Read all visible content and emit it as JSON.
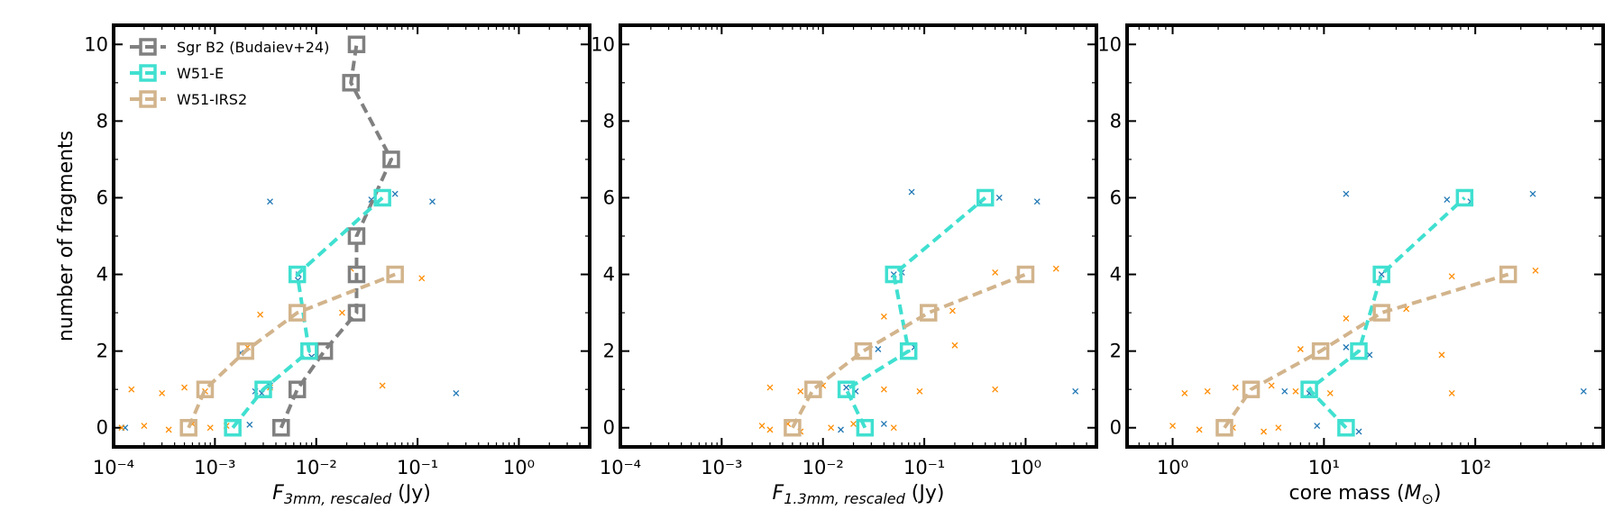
{
  "colors": {
    "sgrb2": "#808080",
    "w51e": "#40e0d0",
    "w51irs2": "#d2b48c",
    "w51e_cores": "#1f77b4",
    "w51irs2_cores": "#ff8c00"
  },
  "chart_data": [
    {
      "type": "line",
      "xscale": "log",
      "xlim": [
        0.0001,
        5
      ],
      "ylim": [
        -0.5,
        10.5
      ],
      "xlabel_main": "F",
      "xlabel_sub": "3mm, rescaled",
      "xlabel_unit": " (Jy)",
      "ylabel": "number of fragments",
      "x_tick_labels": [
        "10⁻⁴",
        "10⁻³",
        "10⁻²",
        "10⁻¹",
        "10⁰"
      ],
      "y_tick_labels": [
        "0",
        "2",
        "4",
        "6",
        "8",
        "10"
      ],
      "legend": {
        "position": "upper-left",
        "entries": [
          "Sgr B2 (Budaiev+24)",
          "W51-E",
          "W51-IRS2"
        ]
      },
      "series": [
        {
          "name": "Sgr B2 (Budaiev+24)",
          "x": [
            0.0045,
            0.0065,
            0.012,
            0.025,
            0.025,
            0.025,
            0.055,
            0.022,
            0.025
          ],
          "y": [
            0,
            1,
            2,
            3,
            4,
            5,
            7,
            9,
            10
          ]
        },
        {
          "name": "W51-E",
          "x": [
            0.0015,
            0.003,
            0.0085,
            0.0065,
            0.045
          ],
          "y": [
            0,
            1,
            2,
            4,
            6
          ]
        },
        {
          "name": "W51-IRS2",
          "x": [
            0.00055,
            0.0008,
            0.002,
            0.0065,
            0.06
          ],
          "y": [
            0,
            1,
            2,
            3,
            4
          ]
        }
      ],
      "cores_w51e": [
        {
          "x": 0.00013,
          "y": 0
        },
        {
          "x": 0.0022,
          "y": 0.08
        },
        {
          "x": 0.0025,
          "y": 0.95
        },
        {
          "x": 0.0035,
          "y": 1.1
        },
        {
          "x": 0.0029,
          "y": 0.9
        },
        {
          "x": 0.0018,
          "y": 1.95
        },
        {
          "x": 0.009,
          "y": 1.85
        },
        {
          "x": 0.0066,
          "y": 3.85
        },
        {
          "x": 0.0067,
          "y": 4.0
        },
        {
          "x": 0.0035,
          "y": 5.9
        },
        {
          "x": 0.035,
          "y": 5.95
        },
        {
          "x": 0.06,
          "y": 6.1
        },
        {
          "x": 0.14,
          "y": 5.9
        },
        {
          "x": 0.24,
          "y": 0.9
        }
      ],
      "cores_w51irs2": [
        {
          "x": 0.00012,
          "y": 0.0
        },
        {
          "x": 0.0002,
          "y": 0.05
        },
        {
          "x": 0.00035,
          "y": -0.05
        },
        {
          "x": 0.0006,
          "y": 0.1
        },
        {
          "x": 0.0009,
          "y": 0.0
        },
        {
          "x": 0.0013,
          "y": 0.05
        },
        {
          "x": 0.00015,
          "y": 1.0
        },
        {
          "x": 0.0003,
          "y": 0.9
        },
        {
          "x": 0.0005,
          "y": 1.05
        },
        {
          "x": 0.0008,
          "y": 0.95
        },
        {
          "x": 0.0035,
          "y": 1.05
        },
        {
          "x": 0.0021,
          "y": 2.1
        },
        {
          "x": 0.0028,
          "y": 2.95
        },
        {
          "x": 0.018,
          "y": 3.0
        },
        {
          "x": 0.022,
          "y": 4.15
        },
        {
          "x": 0.045,
          "y": 1.1
        },
        {
          "x": 0.11,
          "y": 3.9
        }
      ]
    },
    {
      "type": "line",
      "xscale": "log",
      "xlim": [
        0.0001,
        5
      ],
      "ylim": [
        -0.5,
        10.5
      ],
      "xlabel_main": "F",
      "xlabel_sub": "1.3mm, rescaled",
      "xlabel_unit": " (Jy)",
      "x_tick_labels": [
        "10⁻⁴",
        "10⁻³",
        "10⁻²",
        "10⁻¹",
        "10⁰"
      ],
      "y_tick_labels": [
        "0",
        "2",
        "4",
        "6",
        "8",
        "10"
      ],
      "series": [
        {
          "name": "W51-E",
          "x": [
            0.026,
            0.017,
            0.07,
            0.05,
            0.4
          ],
          "y": [
            0,
            1,
            2,
            4,
            6
          ]
        },
        {
          "name": "W51-IRS2",
          "x": [
            0.005,
            0.008,
            0.025,
            0.11,
            1.0
          ],
          "y": [
            0,
            1,
            2,
            3,
            4
          ]
        }
      ],
      "cores_w51e": [
        {
          "x": 0.015,
          "y": -0.05
        },
        {
          "x": 0.04,
          "y": 0.1
        },
        {
          "x": 0.017,
          "y": 1.05
        },
        {
          "x": 0.021,
          "y": 0.95
        },
        {
          "x": 0.035,
          "y": 2.05
        },
        {
          "x": 0.08,
          "y": 2.1
        },
        {
          "x": 0.05,
          "y": 4.0
        },
        {
          "x": 0.06,
          "y": 4.05
        },
        {
          "x": 0.075,
          "y": 6.15
        },
        {
          "x": 0.35,
          "y": 5.9
        },
        {
          "x": 0.55,
          "y": 6.0
        },
        {
          "x": 1.3,
          "y": 5.9
        },
        {
          "x": 3.1,
          "y": 0.95
        }
      ],
      "cores_w51irs2": [
        {
          "x": 0.0025,
          "y": 0.05
        },
        {
          "x": 0.003,
          "y": -0.05
        },
        {
          "x": 0.0045,
          "y": 0.1
        },
        {
          "x": 0.006,
          "y": -0.1
        },
        {
          "x": 0.012,
          "y": 0.0
        },
        {
          "x": 0.02,
          "y": 0.1
        },
        {
          "x": 0.05,
          "y": 0.0
        },
        {
          "x": 0.003,
          "y": 1.05
        },
        {
          "x": 0.006,
          "y": 0.95
        },
        {
          "x": 0.01,
          "y": 1.1
        },
        {
          "x": 0.04,
          "y": 1.0
        },
        {
          "x": 0.09,
          "y": 0.95
        },
        {
          "x": 0.04,
          "y": 2.9
        },
        {
          "x": 0.2,
          "y": 2.15
        },
        {
          "x": 0.19,
          "y": 3.05
        },
        {
          "x": 0.5,
          "y": 4.05
        },
        {
          "x": 0.5,
          "y": 1.0
        },
        {
          "x": 2.0,
          "y": 4.15
        }
      ]
    },
    {
      "type": "line",
      "xscale": "log",
      "xlim": [
        0.5,
        700
      ],
      "ylim": [
        -0.5,
        10.5
      ],
      "xlabel_main": "core mass (",
      "xlabel_unit": ")",
      "xlabel_symbol": "M",
      "xlabel_symbol_sub": "⊙",
      "x_tick_labels": [
        "10⁰",
        "10¹",
        "10²"
      ],
      "y_tick_labels": [
        "0",
        "2",
        "4",
        "6",
        "8",
        "10"
      ],
      "series": [
        {
          "name": "W51-E",
          "x": [
            14,
            8,
            17,
            24,
            85
          ],
          "y": [
            0,
            1,
            2,
            4,
            6
          ]
        },
        {
          "name": "W51-IRS2",
          "x": [
            2.2,
            3.3,
            9.5,
            24,
            165
          ],
          "y": [
            0,
            1,
            2,
            3,
            4
          ]
        }
      ],
      "cores_w51e": [
        {
          "x": 9,
          "y": 0.05
        },
        {
          "x": 17,
          "y": -0.1
        },
        {
          "x": 8,
          "y": 0.9
        },
        {
          "x": 5.5,
          "y": 0.95
        },
        {
          "x": 14,
          "y": 2.1
        },
        {
          "x": 20,
          "y": 1.9
        },
        {
          "x": 24,
          "y": 4.0
        },
        {
          "x": 14,
          "y": 6.1
        },
        {
          "x": 65,
          "y": 5.95
        },
        {
          "x": 93,
          "y": 5.9
        },
        {
          "x": 240,
          "y": 6.1
        },
        {
          "x": 520,
          "y": 0.95
        }
      ],
      "cores_w51irs2": [
        {
          "x": 1.0,
          "y": 0.05
        },
        {
          "x": 1.5,
          "y": -0.05
        },
        {
          "x": 2.5,
          "y": 0.0
        },
        {
          "x": 4,
          "y": -0.1
        },
        {
          "x": 5,
          "y": 0.0
        },
        {
          "x": 1.2,
          "y": 0.9
        },
        {
          "x": 1.7,
          "y": 0.95
        },
        {
          "x": 2.6,
          "y": 1.05
        },
        {
          "x": 4.5,
          "y": 1.1
        },
        {
          "x": 6.5,
          "y": 0.95
        },
        {
          "x": 11,
          "y": 0.9
        },
        {
          "x": 7,
          "y": 2.05
        },
        {
          "x": 14,
          "y": 2.85
        },
        {
          "x": 35,
          "y": 3.1
        },
        {
          "x": 70,
          "y": 3.95
        },
        {
          "x": 60,
          "y": 1.9
        },
        {
          "x": 70,
          "y": 0.9
        },
        {
          "x": 250,
          "y": 4.1
        }
      ]
    }
  ]
}
